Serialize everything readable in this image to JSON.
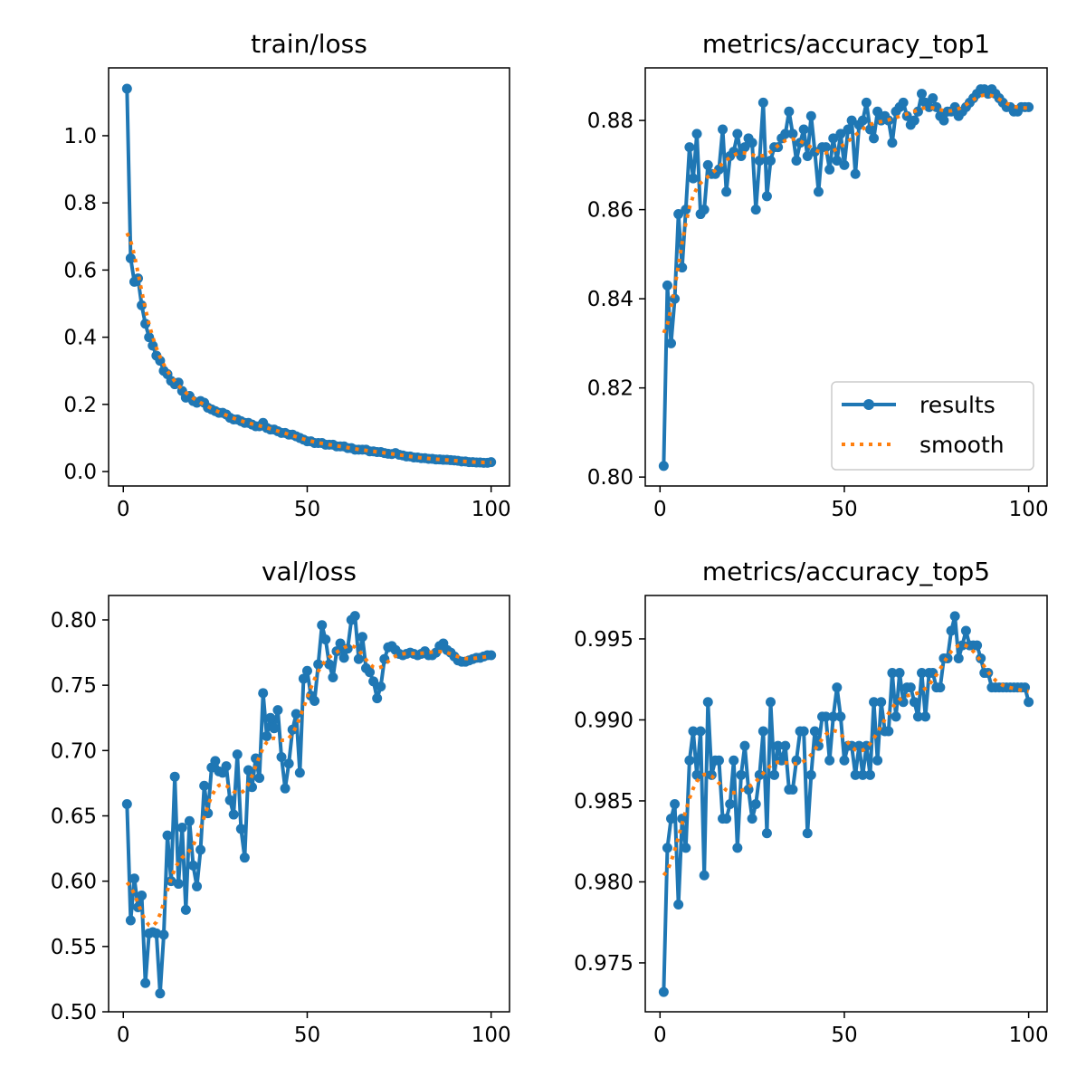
{
  "chart_data": [
    {
      "type": "line",
      "title": "train/loss",
      "xlim": [
        -4,
        105
      ],
      "ylim": [
        -0.043,
        1.202
      ],
      "xticks": [
        0,
        50,
        100
      ],
      "yticks": [
        0.0,
        0.2,
        0.4,
        0.6,
        0.8,
        1.0
      ],
      "ytick_labels": [
        "0.0",
        "0.2",
        "0.4",
        "0.6",
        "0.8",
        "1.0"
      ],
      "grid": false,
      "series": [
        {
          "name": "results",
          "color": "#1f77b4",
          "values": [
            1.14,
            0.635,
            0.565,
            0.575,
            0.495,
            0.44,
            0.4,
            0.375,
            0.345,
            0.33,
            0.3,
            0.29,
            0.27,
            0.26,
            0.265,
            0.24,
            0.22,
            0.225,
            0.21,
            0.205,
            0.21,
            0.205,
            0.19,
            0.185,
            0.18,
            0.175,
            0.175,
            0.17,
            0.16,
            0.155,
            0.155,
            0.15,
            0.145,
            0.145,
            0.14,
            0.135,
            0.135,
            0.145,
            0.13,
            0.125,
            0.125,
            0.12,
            0.115,
            0.115,
            0.11,
            0.11,
            0.105,
            0.1,
            0.095,
            0.09,
            0.09,
            0.085,
            0.085,
            0.085,
            0.08,
            0.08,
            0.08,
            0.075,
            0.075,
            0.075,
            0.07,
            0.07,
            0.065,
            0.065,
            0.065,
            0.065,
            0.06,
            0.06,
            0.058,
            0.058,
            0.055,
            0.053,
            0.052,
            0.055,
            0.05,
            0.048,
            0.045,
            0.045,
            0.042,
            0.042,
            0.04,
            0.04,
            0.038,
            0.038,
            0.036,
            0.036,
            0.035,
            0.035,
            0.034,
            0.033,
            0.032,
            0.03,
            0.03,
            0.028,
            0.028,
            0.027,
            0.027,
            0.026,
            0.026,
            0.028
          ]
        },
        {
          "name": "smooth",
          "color": "#ff7f0e",
          "style": "dotted"
        }
      ]
    },
    {
      "type": "line",
      "title": "metrics/accuracy_top1",
      "xlim": [
        -4,
        105
      ],
      "ylim": [
        0.798,
        0.8918
      ],
      "xticks": [
        0,
        50,
        100
      ],
      "yticks": [
        0.8,
        0.82,
        0.84,
        0.86,
        0.88
      ],
      "ytick_labels": [
        "0.80",
        "0.82",
        "0.84",
        "0.86",
        "0.88"
      ],
      "grid": false,
      "legend": "lower-right",
      "series": [
        {
          "name": "results",
          "color": "#1f77b4",
          "values": [
            0.8025,
            0.843,
            0.83,
            0.84,
            0.859,
            0.847,
            0.86,
            0.874,
            0.867,
            0.877,
            0.859,
            0.86,
            0.87,
            0.868,
            0.868,
            0.869,
            0.878,
            0.864,
            0.872,
            0.873,
            0.877,
            0.872,
            0.874,
            0.876,
            0.875,
            0.86,
            0.871,
            0.884,
            0.863,
            0.871,
            0.874,
            0.874,
            0.876,
            0.877,
            0.882,
            0.877,
            0.871,
            0.875,
            0.878,
            0.872,
            0.881,
            0.873,
            0.864,
            0.874,
            0.874,
            0.869,
            0.876,
            0.871,
            0.877,
            0.87,
            0.878,
            0.88,
            0.868,
            0.879,
            0.88,
            0.884,
            0.878,
            0.876,
            0.882,
            0.88,
            0.881,
            0.88,
            0.875,
            0.882,
            0.883,
            0.884,
            0.881,
            0.879,
            0.88,
            0.882,
            0.886,
            0.884,
            0.883,
            0.885,
            0.883,
            0.881,
            0.88,
            0.882,
            0.882,
            0.883,
            0.881,
            0.882,
            0.883,
            0.884,
            0.885,
            0.886,
            0.887,
            0.887,
            0.886,
            0.887,
            0.886,
            0.885,
            0.884,
            0.883,
            0.883,
            0.882,
            0.882,
            0.883,
            0.883,
            0.883
          ]
        },
        {
          "name": "smooth",
          "color": "#ff7f0e",
          "style": "dotted"
        }
      ]
    },
    {
      "type": "line",
      "title": "val/loss",
      "xlim": [
        -4,
        105
      ],
      "ylim": [
        0.5,
        0.8187
      ],
      "xticks": [
        0,
        50,
        100
      ],
      "yticks": [
        0.5,
        0.55,
        0.6,
        0.65,
        0.7,
        0.75,
        0.8
      ],
      "ytick_labels": [
        "0.50",
        "0.55",
        "0.60",
        "0.65",
        "0.70",
        "0.75",
        "0.80"
      ],
      "grid": false,
      "series": [
        {
          "name": "results",
          "color": "#1f77b4",
          "values": [
            0.659,
            0.57,
            0.602,
            0.58,
            0.589,
            0.522,
            0.56,
            0.561,
            0.56,
            0.514,
            0.559,
            0.635,
            0.6,
            0.68,
            0.598,
            0.641,
            0.578,
            0.646,
            0.612,
            0.596,
            0.624,
            0.673,
            0.652,
            0.687,
            0.692,
            0.684,
            0.683,
            0.688,
            0.662,
            0.651,
            0.697,
            0.64,
            0.618,
            0.685,
            0.672,
            0.694,
            0.679,
            0.744,
            0.711,
            0.725,
            0.717,
            0.731,
            0.695,
            0.671,
            0.69,
            0.716,
            0.728,
            0.683,
            0.755,
            0.761,
            0.742,
            0.738,
            0.766,
            0.796,
            0.785,
            0.766,
            0.756,
            0.776,
            0.782,
            0.771,
            0.778,
            0.8,
            0.803,
            0.77,
            0.787,
            0.763,
            0.76,
            0.753,
            0.74,
            0.749,
            0.77,
            0.779,
            0.78,
            0.777,
            0.774,
            0.773,
            0.774,
            0.775,
            0.774,
            0.773,
            0.774,
            0.776,
            0.773,
            0.773,
            0.775,
            0.78,
            0.782,
            0.777,
            0.775,
            0.772,
            0.769,
            0.768,
            0.768,
            0.769,
            0.77,
            0.771,
            0.771,
            0.772,
            0.773,
            0.773
          ]
        },
        {
          "name": "smooth",
          "color": "#ff7f0e",
          "style": "dotted"
        }
      ]
    },
    {
      "type": "line",
      "title": "metrics/accuracy_top5",
      "xlim": [
        -4,
        105
      ],
      "ylim": [
        0.97198,
        0.99768
      ],
      "xticks": [
        0,
        50,
        100
      ],
      "yticks": [
        0.975,
        0.98,
        0.985,
        0.99,
        0.995
      ],
      "ytick_labels": [
        "0.975",
        "0.980",
        "0.985",
        "0.990",
        "0.995"
      ],
      "grid": false,
      "series": [
        {
          "name": "results",
          "color": "#1f77b4",
          "values": [
            0.9732,
            0.9821,
            0.9839,
            0.9848,
            0.9786,
            0.9839,
            0.9821,
            0.9875,
            0.9893,
            0.9866,
            0.9893,
            0.9804,
            0.9911,
            0.9866,
            0.9875,
            0.9875,
            0.9839,
            0.9839,
            0.9848,
            0.9875,
            0.9821,
            0.9866,
            0.9884,
            0.9857,
            0.9839,
            0.9848,
            0.9866,
            0.9893,
            0.983,
            0.9911,
            0.9866,
            0.9884,
            0.9875,
            0.9884,
            0.9857,
            0.9857,
            0.9875,
            0.9893,
            0.9893,
            0.983,
            0.9866,
            0.9893,
            0.9884,
            0.9902,
            0.9902,
            0.9875,
            0.9902,
            0.992,
            0.9902,
            0.9875,
            0.9884,
            0.9884,
            0.9866,
            0.9884,
            0.9866,
            0.9884,
            0.9866,
            0.9911,
            0.9875,
            0.9911,
            0.9893,
            0.9893,
            0.9929,
            0.9902,
            0.9929,
            0.9911,
            0.992,
            0.992,
            0.9911,
            0.9902,
            0.9929,
            0.9902,
            0.9929,
            0.9929,
            0.992,
            0.992,
            0.9938,
            0.9938,
            0.9955,
            0.9964,
            0.9938,
            0.9946,
            0.9955,
            0.9946,
            0.9946,
            0.9946,
            0.9938,
            0.9929,
            0.9929,
            0.992,
            0.992,
            0.992,
            0.992,
            0.992,
            0.992,
            0.992,
            0.992,
            0.992,
            0.992,
            0.9911
          ]
        },
        {
          "name": "smooth",
          "color": "#ff7f0e",
          "style": "dotted"
        }
      ]
    }
  ],
  "legend": {
    "results_label": "results",
    "smooth_label": "smooth"
  }
}
